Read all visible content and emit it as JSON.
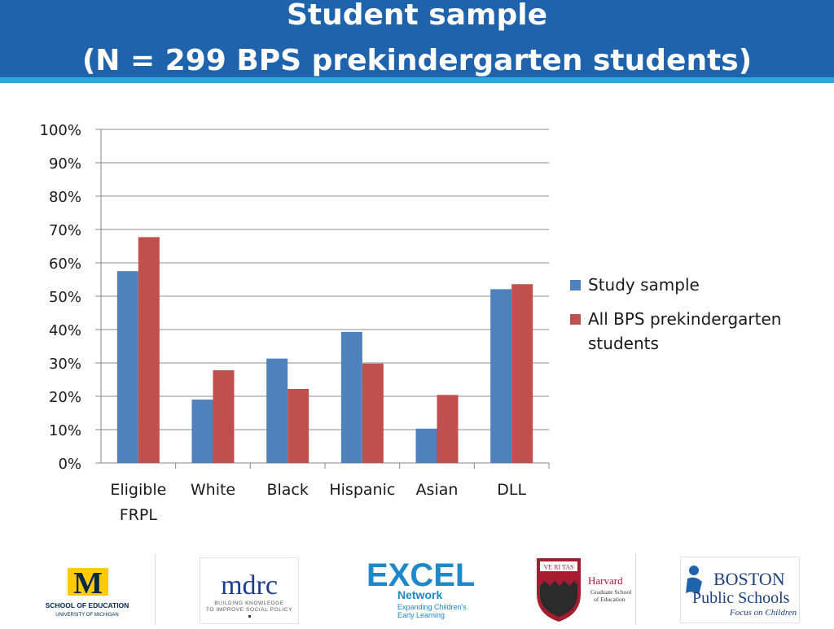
{
  "header": {
    "title_line1": "Student sample",
    "title_line2": "(N = 299 BPS prekindergarten students)"
  },
  "chart_data": {
    "type": "bar",
    "categories": [
      "Eligible FRPL",
      "White",
      "Black",
      "Hispanic",
      "Asian",
      "DLL"
    ],
    "category_lines": [
      [
        "Eligible",
        "FRPL"
      ],
      [
        "White"
      ],
      [
        "Black"
      ],
      [
        "Hispanic"
      ],
      [
        "Asian"
      ],
      [
        "DLL"
      ]
    ],
    "series": [
      {
        "name": "Study sample",
        "values": [
          57.5,
          19,
          31.3,
          39.3,
          10.3,
          52.1
        ],
        "color": "#4f81bd"
      },
      {
        "name": "All BPS prekindergarten students",
        "values": [
          67.7,
          27.8,
          22.2,
          29.8,
          20.4,
          53.6
        ],
        "color": "#c0504d"
      }
    ],
    "legend_lines": [
      [
        "Study sample"
      ],
      [
        "All BPS prekindergarten",
        "students"
      ]
    ],
    "ylim": [
      0,
      100
    ],
    "yticks": [
      "0%",
      "10%",
      "20%",
      "30%",
      "40%",
      "50%",
      "60%",
      "70%",
      "80%",
      "90%",
      "100%"
    ],
    "grid": true,
    "legend_position": "right"
  },
  "logos": {
    "umich_block": "M",
    "umich_text1": "SCHOOL OF EDUCATION",
    "umich_text2": "UNIVERSITY OF MICHIGAN",
    "mdrc_name": "mdrc",
    "mdrc_tag1": "BUILDING KNOWLEDGE",
    "mdrc_tag2": "TO IMPROVE SOCIAL POLICY",
    "excel_name": "EXCEL",
    "excel_sub": "Network",
    "excel_tag1": "Expanding Children's",
    "excel_tag2": "Early Learning",
    "harvard_name": "Harvard",
    "harvard_sub1": "Graduate School",
    "harvard_sub2": "of Education",
    "harvard_veritas": "VE RI TAS",
    "bps_line1": "BOSTON",
    "bps_line2": "Public Schools",
    "bps_line3": "Focus on Children",
    "colors": {
      "umich_maize": "#ffcb05",
      "umich_blue": "#00274c",
      "harvard_crimson": "#a51c30",
      "excel_blue": "#1e88c8"
    }
  }
}
